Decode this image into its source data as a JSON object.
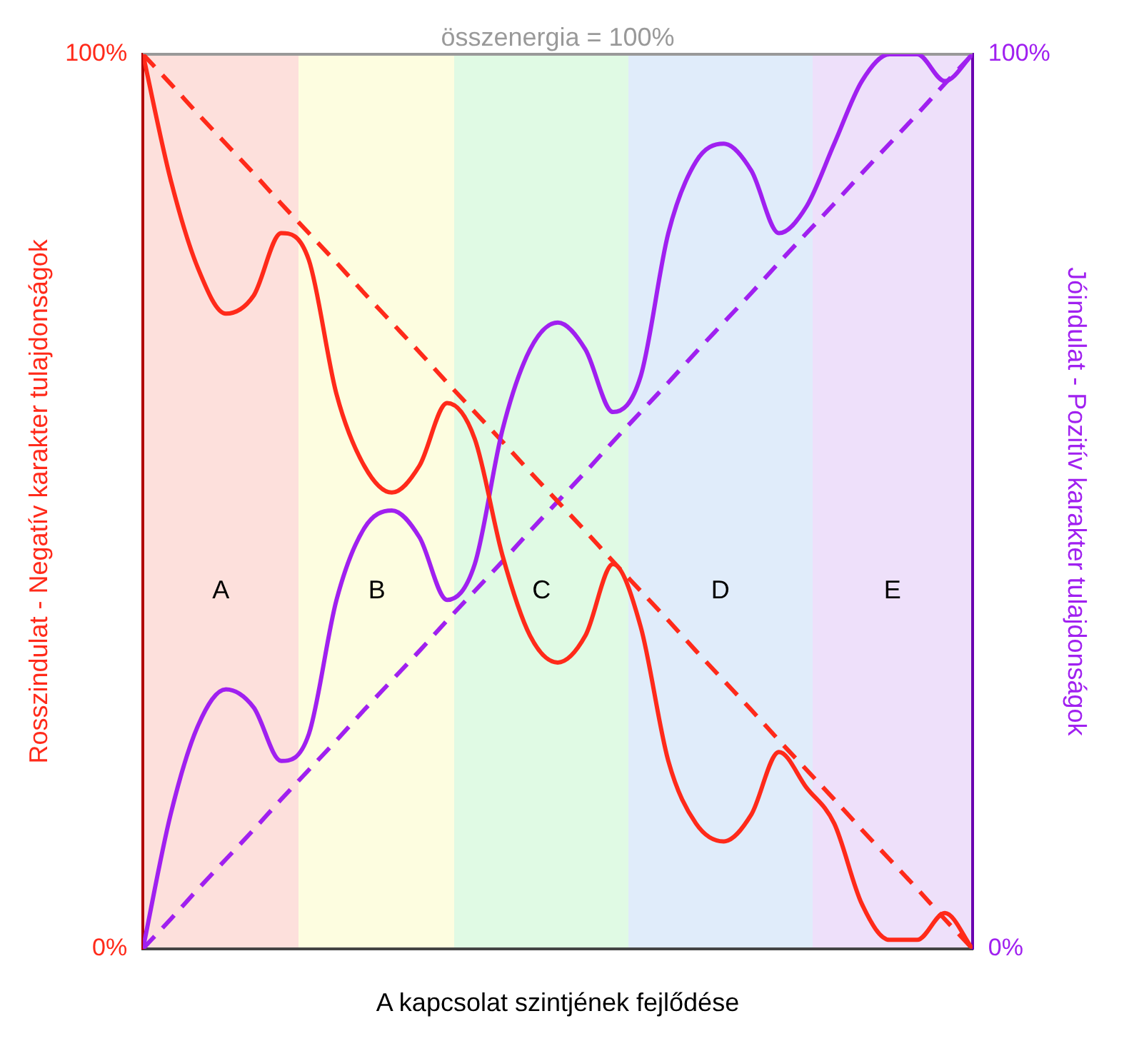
{
  "chart_data": {
    "type": "line",
    "xlabel": "A kapcsolat szintjének fejlődése",
    "ylabel": "Rosszindulat - Negatív karakter tulajdonságok",
    "y2label": "Jóindulat - Pozitív karakter tulajdonságok",
    "categories": [
      null,
      null,
      null,
      null,
      null,
      null,
      null,
      null,
      null,
      null,
      null,
      null,
      null,
      null,
      null,
      null,
      null,
      null,
      null,
      null,
      null,
      null,
      null,
      null,
      null,
      null,
      null,
      null,
      null,
      null,
      null
    ],
    "series": [
      {
        "color": "#ff2a1a",
        "values": [
          100,
          86,
          76,
          71,
          73,
          80,
          77,
          62,
          54,
          51,
          54,
          61,
          57,
          44,
          35,
          32,
          35,
          43,
          36,
          21,
          14,
          12,
          15,
          22,
          18,
          14,
          5,
          1,
          1,
          4,
          0
        ]
      },
      {
        "color": "#a020f0",
        "axis": "y2",
        "values": [
          0,
          15,
          25,
          29,
          27,
          21,
          24,
          39,
          47,
          49,
          46,
          39,
          43,
          58,
          67,
          70,
          67,
          60,
          64,
          80,
          88,
          90,
          87,
          80,
          83,
          90,
          97,
          100,
          100,
          97,
          100
        ]
      },
      {
        "color": "#ff2a1a",
        "line_style": "dashed",
        "values": [
          100,
          96.7,
          93.3,
          90,
          86.7,
          83.3,
          80,
          76.7,
          73.3,
          70,
          66.7,
          63.3,
          60,
          56.7,
          53.3,
          50,
          46.7,
          43.3,
          40,
          36.7,
          33.3,
          30,
          26.7,
          23.3,
          20,
          16.7,
          13.3,
          10,
          6.7,
          3.3,
          0
        ]
      },
      {
        "color": "#a020f0",
        "axis": "y2",
        "line_style": "dashed",
        "values": [
          0,
          3.3,
          6.7,
          10,
          13.3,
          16.7,
          20,
          23.3,
          26.7,
          30,
          33.3,
          36.7,
          40,
          43.3,
          46.7,
          50,
          53.3,
          56.7,
          60,
          63.3,
          66.7,
          70,
          73.3,
          76.7,
          80,
          83.3,
          86.7,
          90,
          93.3,
          96.7,
          100
        ]
      }
    ],
    "ylim": [
      0,
      100
    ],
    "yticks": [
      {
        "value": 0,
        "label": "0%"
      },
      {
        "value": 100,
        "label": "100%"
      }
    ],
    "y2lim": [
      0,
      100
    ],
    "y2ticks": [
      {
        "value": 0,
        "label": "0%"
      },
      {
        "value": 100,
        "label": "100%"
      }
    ],
    "annotations": [
      "A",
      "B",
      "C",
      "D",
      "E"
    ],
    "ref_lines": [
      {
        "axis": "y",
        "value": 100,
        "label": "összenergia = 100%",
        "color": "#999999"
      }
    ],
    "grid": false,
    "legend": false,
    "marker": "none"
  }
}
